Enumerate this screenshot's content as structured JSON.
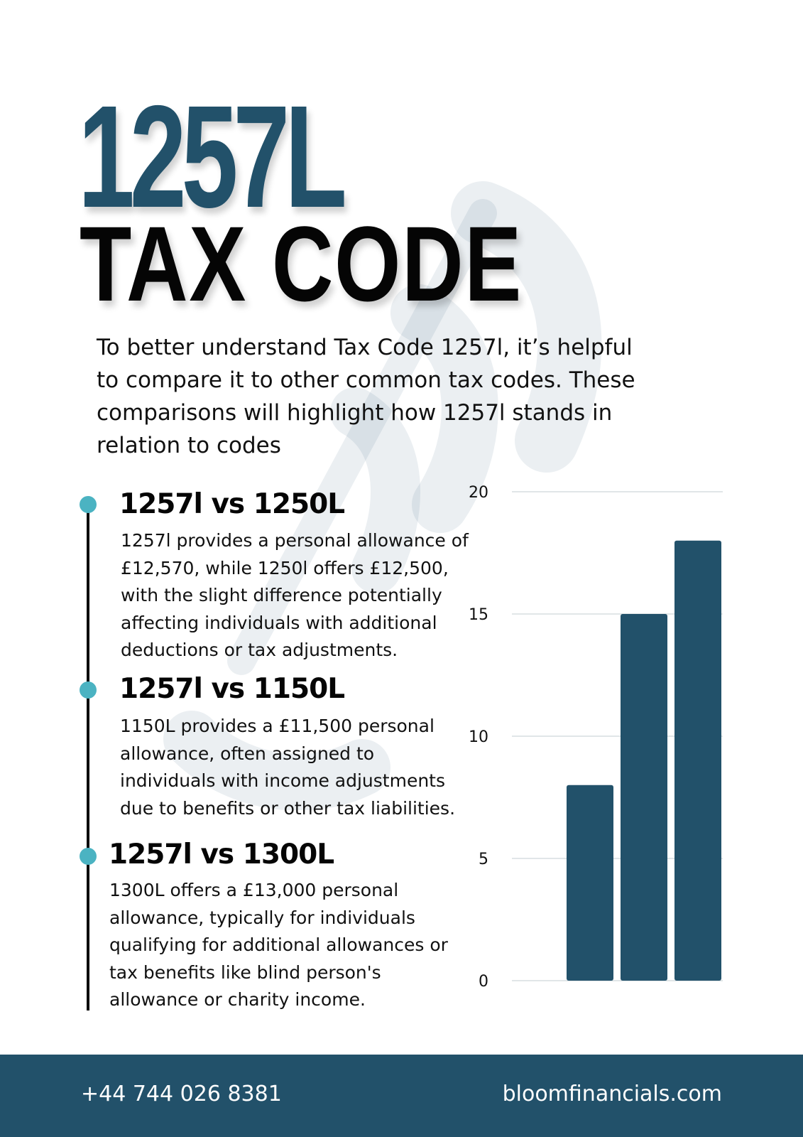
{
  "header": {
    "code": "1257L",
    "subtitle": "TAX CODE"
  },
  "intro": "To better understand Tax Code 1257l, it’s helpful to compare it to other common tax codes. These comparisons will highlight how 1257l stands in relation to codes",
  "comparisons": [
    {
      "title": "1257l vs 1250L",
      "body": "1257l provides a personal allowance of £12,570, while 1250l offers £12,500, with the slight difference potentially affecting individuals with additional deductions or tax adjustments."
    },
    {
      "title": "1257l vs 1150L",
      "body": "1150L provides a £11,500 personal allowance, often assigned to individuals with income adjustments due to benefits or other tax liabilities."
    },
    {
      "title": "1257l vs 1300L",
      "body": "1300L offers a £13,000 personal allowance, typically for individuals qualifying for additional allowances or tax benefits like blind person's allowance or charity income."
    }
  ],
  "chart_data": {
    "type": "bar",
    "categories": [
      "",
      "",
      ""
    ],
    "values": [
      8,
      15,
      18
    ],
    "ylim": [
      0,
      20
    ],
    "yticks": [
      0,
      5,
      10,
      15,
      20
    ],
    "grid": true,
    "color": "#22516a"
  },
  "footer": {
    "phone": "+44 744 026 8381",
    "website": "bloomfinancials.com"
  },
  "colors": {
    "primary": "#22516a",
    "accent": "#4bb3c2",
    "text": "#111111"
  },
  "watermark": {
    "logo_icon": "bloom-logo-icon"
  }
}
